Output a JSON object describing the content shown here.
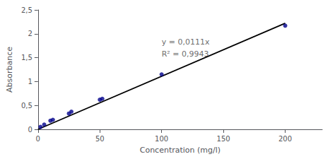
{
  "chart_data": {
    "type": "scatter",
    "xlabel": "Concentration (mg/l)",
    "ylabel": "Absorbance",
    "series": [
      {
        "type": "line",
        "color": "#000000",
        "x": [
          0,
          200
        ],
        "values": [
          0,
          2.22
        ]
      },
      {
        "type": "scatter",
        "color": "#00008B",
        "marker": "circle",
        "x": [
          2,
          5,
          10,
          12,
          25,
          27,
          50,
          52,
          100,
          200
        ],
        "values": [
          0.05,
          0.1,
          0.18,
          0.2,
          0.33,
          0.37,
          0.62,
          0.64,
          1.15,
          2.17
        ]
      }
    ],
    "annotation": {
      "lines": [
        "y = 0,0111x",
        "R² = 0,9943"
      ],
      "x": 100,
      "y": 1.95
    },
    "xlim": [
      0,
      230
    ],
    "ylim": [
      0,
      2.5
    ],
    "xticks": [
      0,
      50,
      100,
      150,
      200
    ],
    "yticks": [
      0,
      {
        "value": 0.5,
        "label": "0,5"
      },
      1,
      {
        "value": 1.5,
        "label": "1,5"
      },
      2,
      {
        "value": 2.5,
        "label": "2,5"
      }
    ],
    "grid": false
  }
}
